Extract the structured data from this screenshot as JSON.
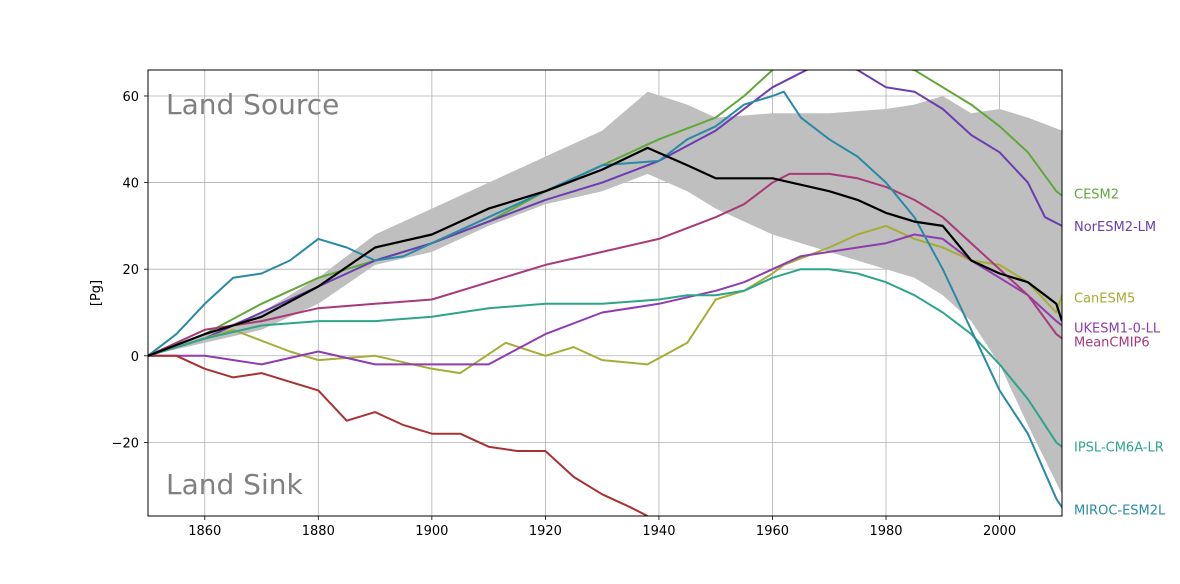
{
  "chart_data": {
    "type": "line",
    "ylabel": "[Pg]",
    "xlim": [
      1850,
      2011
    ],
    "ylim": [
      -37,
      66
    ],
    "x_ticks": [
      1860,
      1880,
      1900,
      1920,
      1940,
      1960,
      1980,
      2000
    ],
    "y_ticks": [
      -20,
      0,
      20,
      40,
      60
    ],
    "grid": true,
    "annotations": {
      "top": "Land Source",
      "bottom": "Land Sink"
    },
    "band": {
      "color": "#bfbfbf",
      "x": [
        1850,
        1860,
        1870,
        1880,
        1890,
        1900,
        1910,
        1920,
        1930,
        1938,
        1945,
        1950,
        1960,
        1970,
        1980,
        1985,
        1990,
        1995,
        2000,
        2005,
        2011
      ],
      "upper": [
        0,
        5,
        10,
        18,
        28,
        34,
        40,
        46,
        52,
        61,
        58,
        55,
        56,
        56,
        57,
        58,
        60,
        56,
        57,
        55,
        52
      ],
      "lower": [
        0,
        3,
        6,
        12,
        21,
        24,
        30,
        35,
        38,
        42,
        38,
        34,
        28,
        24,
        20,
        18,
        14,
        8,
        -2,
        -16,
        -32
      ]
    },
    "series": [
      {
        "name": "CESM2",
        "color": "#5fa83a",
        "x": [
          1850,
          1860,
          1870,
          1880,
          1890,
          1900,
          1910,
          1920,
          1930,
          1940,
          1950,
          1955,
          1960,
          1965,
          1985,
          1990,
          1995,
          2000,
          2005,
          2010,
          2011
        ],
        "y": [
          0,
          5,
          12,
          18,
          22,
          26,
          31,
          38,
          44,
          50,
          55,
          60,
          66,
          70,
          66,
          62,
          58,
          53,
          47,
          38,
          37
        ]
      },
      {
        "name": "NorESM2-LM",
        "color": "#6a3db0",
        "x": [
          1850,
          1860,
          1870,
          1880,
          1890,
          1900,
          1910,
          1920,
          1930,
          1940,
          1950,
          1960,
          1966,
          1970,
          1975,
          1980,
          1985,
          1990,
          1995,
          2000,
          2005,
          2008,
          2011
        ],
        "y": [
          0,
          4,
          10,
          16,
          22,
          26,
          31,
          36,
          40,
          45,
          52,
          62,
          66,
          68,
          66,
          62,
          61,
          57,
          51,
          47,
          40,
          32,
          30
        ]
      },
      {
        "name": "CanESM5",
        "color": "#a6ad35",
        "x": [
          1850,
          1855,
          1865,
          1875,
          1880,
          1890,
          1900,
          1905,
          1913,
          1920,
          1925,
          1930,
          1938,
          1945,
          1950,
          1955,
          1960,
          1962,
          1970,
          1975,
          1980,
          1985,
          1990,
          1995,
          2000,
          2005,
          2010,
          2011
        ],
        "y": [
          0,
          2,
          6,
          1,
          -1,
          0,
          -3,
          -4,
          3,
          0,
          2,
          -1,
          -2,
          3,
          13,
          15,
          19,
          21,
          25,
          28,
          30,
          27,
          25,
          22,
          21,
          17,
          10,
          14
        ]
      },
      {
        "name": "UKESM1-0-LL",
        "color": "#8e3cb0",
        "x": [
          1850,
          1860,
          1870,
          1880,
          1890,
          1900,
          1910,
          1920,
          1930,
          1940,
          1950,
          1955,
          1960,
          1965,
          1970,
          1975,
          1980,
          1985,
          1990,
          1995,
          2000,
          2005,
          2010,
          2011
        ],
        "y": [
          0,
          0,
          -2,
          1,
          -2,
          -2,
          -2,
          5,
          10,
          12,
          15,
          17,
          20,
          23,
          24,
          25,
          26,
          28,
          27,
          22,
          18,
          14,
          8,
          7
        ]
      },
      {
        "name": "MeanCMIP6",
        "color": "#a83a78",
        "x": [
          1850,
          1860,
          1870,
          1880,
          1890,
          1900,
          1910,
          1920,
          1930,
          1940,
          1950,
          1955,
          1960,
          1963,
          1970,
          1975,
          1980,
          1985,
          1990,
          1995,
          2000,
          2005,
          2010,
          2011
        ],
        "y": [
          0,
          6,
          8,
          11,
          12,
          13,
          17,
          21,
          24,
          27,
          32,
          35,
          40,
          42,
          42,
          41,
          39,
          36,
          32,
          26,
          20,
          14,
          5,
          4
        ]
      },
      {
        "name": "IPSL-CM6A-LR",
        "color": "#2ea58a",
        "x": [
          1850,
          1860,
          1870,
          1880,
          1890,
          1900,
          1910,
          1920,
          1930,
          1940,
          1945,
          1950,
          1955,
          1960,
          1965,
          1970,
          1975,
          1980,
          1985,
          1990,
          1995,
          2000,
          2005,
          2010,
          2011
        ],
        "y": [
          0,
          4,
          7,
          8,
          8,
          9,
          11,
          12,
          12,
          13,
          14,
          14,
          15,
          18,
          20,
          20,
          19,
          17,
          14,
          10,
          5,
          -2,
          -10,
          -20,
          -21
        ]
      },
      {
        "name": "MIROC-ESM2L",
        "color": "#2a8aa6",
        "x": [
          1850,
          1855,
          1860,
          1865,
          1870,
          1875,
          1880,
          1885,
          1890,
          1895,
          1900,
          1910,
          1920,
          1930,
          1940,
          1945,
          1950,
          1955,
          1960,
          1962,
          1965,
          1970,
          1975,
          1980,
          1985,
          1990,
          1995,
          2000,
          2005,
          2010,
          2011
        ],
        "y": [
          0,
          5,
          12,
          18,
          19,
          22,
          27,
          25,
          22,
          23,
          26,
          32,
          38,
          44,
          45,
          50,
          53,
          58,
          60,
          61,
          55,
          50,
          46,
          40,
          32,
          20,
          6,
          -8,
          -18,
          -33,
          -35
        ]
      },
      {
        "name": "",
        "color": "#a83232",
        "x": [
          1850,
          1855,
          1860,
          1865,
          1870,
          1875,
          1880,
          1885,
          1890,
          1895,
          1900,
          1905,
          1910,
          1915,
          1920,
          1925,
          1930,
          1935,
          1938
        ],
        "y": [
          0,
          0,
          -3,
          -5,
          -4,
          -6,
          -8,
          -15,
          -13,
          -16,
          -18,
          -18,
          -21,
          -22,
          -22,
          -28,
          -32,
          -35,
          -37
        ]
      },
      {
        "name": "",
        "color": "#000000",
        "x": [
          1850,
          1860,
          1870,
          1880,
          1890,
          1900,
          1910,
          1920,
          1930,
          1938,
          1945,
          1950,
          1960,
          1970,
          1975,
          1980,
          1985,
          1990,
          1995,
          2000,
          2005,
          2010,
          2011
        ],
        "y": [
          0,
          5,
          9,
          16,
          25,
          28,
          34,
          38,
          43,
          48,
          44,
          41,
          41,
          38,
          36,
          33,
          31,
          30,
          22,
          19,
          17,
          12,
          8
        ]
      }
    ],
    "right_labels": [
      {
        "text": "CESM2",
        "color": "#5fa83a",
        "y": 37.5
      },
      {
        "text": "NorESM2-LM",
        "color": "#6a3db0",
        "y": 30
      },
      {
        "text": "CanESM5",
        "color": "#a6ad35",
        "y": 13.5
      },
      {
        "text": "UKESM1-0-LL",
        "color": "#8e3cb0",
        "y": 6.5
      },
      {
        "text": "MeanCMIP6",
        "color": "#a83a78",
        "y": 3.3
      },
      {
        "text": "IPSL-CM6A-LR",
        "color": "#2ea58a",
        "y": -21
      },
      {
        "text": "MIROC-ESM2L",
        "color": "#2a8aa6",
        "y": -35.5
      }
    ]
  }
}
